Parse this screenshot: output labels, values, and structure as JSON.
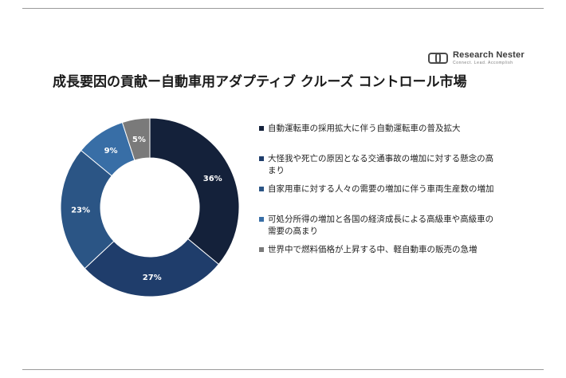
{
  "logo": {
    "name": "Research Nester",
    "tagline": "Connect. Lead. Accomplish"
  },
  "chart_data": {
    "type": "pie",
    "variant": "donut",
    "title": "成長要因の貢献ー自動車用アダプティブ クルーズ コントロール市場",
    "legend_position": "right",
    "start_angle_deg": 0,
    "direction": "clockwise",
    "slices": [
      {
        "label": "自動運転車の採用拡大に伴う自動運転車の普及拡大",
        "value": 36,
        "value_label": "36%",
        "color": "#14213a"
      },
      {
        "label": "大怪我や死亡の原因となる交通事故の増加に対する懸念の高まり",
        "value": 27,
        "value_label": "27%",
        "color": "#1f3d6b"
      },
      {
        "label": "自家用車に対する人々の需要の増加に伴う車両生産数の増加",
        "value": 23,
        "value_label": "23%",
        "color": "#2b5585"
      },
      {
        "label": "可処分所得の増加と各国の経済成長による高級車や高級車の需要の高まり",
        "value": 9,
        "value_label": "9%",
        "color": "#386ea6"
      },
      {
        "label": "世界中で燃料価格が上昇する中、軽自動車の販売の急増",
        "value": 5,
        "value_label": "5%",
        "color": "#7a7a7a"
      }
    ]
  }
}
